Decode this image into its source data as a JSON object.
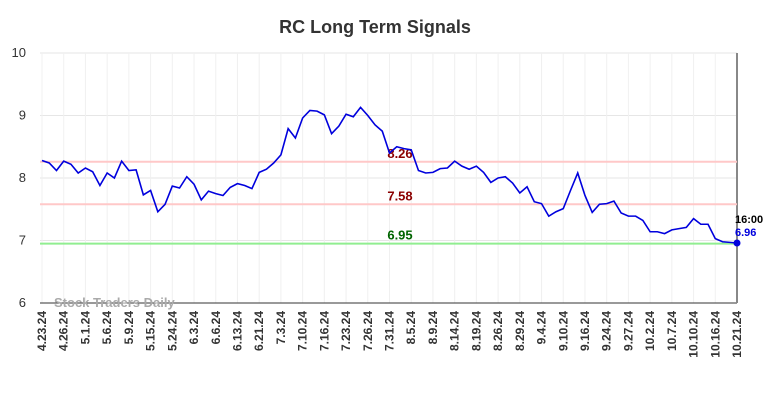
{
  "chart_data": {
    "type": "line",
    "title": "RC Long Term Signals",
    "watermark": "Stock Traders Daily",
    "end_time": "16:00",
    "categories": [
      "4.23.24",
      null,
      null,
      "4.26.24",
      null,
      null,
      "5.1.24",
      null,
      null,
      "5.6.24",
      null,
      null,
      "5.9.24",
      null,
      null,
      "5.15.24",
      null,
      null,
      "5.24.24",
      null,
      null,
      "6.3.24",
      null,
      null,
      "6.6.24",
      null,
      null,
      "6.13.24",
      null,
      null,
      "6.21.24",
      null,
      null,
      "7.3.24",
      null,
      null,
      "7.10.24",
      null,
      null,
      "7.16.24",
      null,
      null,
      "7.23.24",
      null,
      null,
      "7.26.24",
      null,
      null,
      "7.31.24",
      null,
      null,
      "8.5.24",
      null,
      null,
      "8.9.24",
      null,
      null,
      "8.14.24",
      null,
      null,
      "8.19.24",
      null,
      null,
      "8.26.24",
      null,
      null,
      "8.29.24",
      null,
      null,
      "9.4.24",
      null,
      null,
      "9.10.24",
      null,
      null,
      "9.16.24",
      null,
      null,
      "9.24.24",
      null,
      null,
      "9.27.24",
      null,
      null,
      "10.2.24",
      null,
      null,
      "10.7.24",
      null,
      null,
      "10.10.24",
      null,
      null,
      "10.16.24",
      null,
      null,
      "10.21.24"
    ],
    "values": [
      8.28,
      8.24,
      8.12,
      8.27,
      8.22,
      8.08,
      8.16,
      8.1,
      7.88,
      8.08,
      8.0,
      8.27,
      8.12,
      8.13,
      7.73,
      7.8,
      7.46,
      7.58,
      7.87,
      7.84,
      8.02,
      7.9,
      7.65,
      7.79,
      7.75,
      7.72,
      7.85,
      7.91,
      7.88,
      7.83,
      8.09,
      8.14,
      8.24,
      8.37,
      8.79,
      8.64,
      8.96,
      9.08,
      9.07,
      9.01,
      8.71,
      8.83,
      9.02,
      8.98,
      9.13,
      9.0,
      8.85,
      8.75,
      8.4,
      8.5,
      8.47,
      8.45,
      8.12,
      8.08,
      8.09,
      8.15,
      8.16,
      8.27,
      8.19,
      8.14,
      8.19,
      8.09,
      7.93,
      8.0,
      8.02,
      7.92,
      7.76,
      7.86,
      7.62,
      7.59,
      7.39,
      7.46,
      7.51,
      7.8,
      8.08,
      7.72,
      7.45,
      7.58,
      7.59,
      7.63,
      7.44,
      7.39,
      7.39,
      7.32,
      7.14,
      7.14,
      7.11,
      7.17,
      7.19,
      7.21,
      7.35,
      7.26,
      7.26,
      7.03,
      6.98,
      6.97,
      6.96
    ],
    "color": "#0000dd",
    "levels": [
      {
        "value": 8.26,
        "color": "#ffc8c8",
        "label_color": "#8b0000"
      },
      {
        "value": 7.58,
        "color": "#ffc8c8",
        "label_color": "#8b0000"
      },
      {
        "value": 6.95,
        "color": "#90ee90",
        "label_color": "#006400"
      }
    ],
    "ylim": [
      6,
      10
    ],
    "yticks": [
      6,
      7,
      8,
      9,
      10
    ],
    "grid": true
  }
}
